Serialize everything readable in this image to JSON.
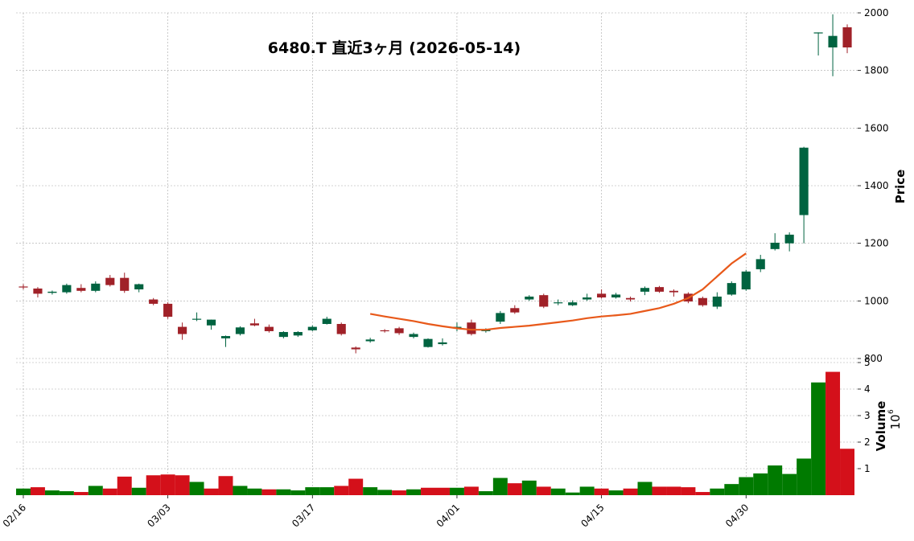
{
  "chart_data": [
    {
      "type": "candlestick",
      "title": "6480.T 直近3ヶ月 (2026-05-14)",
      "ylabel": "Price",
      "ylim": [
        800,
        2000
      ],
      "yticks": [
        "800",
        "1000",
        "1200",
        "1400",
        "1600",
        "1800",
        "2000"
      ],
      "xticks": [
        {
          "index": 0,
          "label": "02/16"
        },
        {
          "index": 10,
          "label": "03/03"
        },
        {
          "index": 20,
          "label": "03/17"
        },
        {
          "index": 30,
          "label": "04/01"
        },
        {
          "index": 40,
          "label": "04/15"
        },
        {
          "index": 50,
          "label": "04/30"
        }
      ],
      "grid": true,
      "colors": {
        "up": "#006340",
        "down": "#a02128",
        "ma": "#e8591a"
      },
      "ohlc": [
        [
          1050,
          1058,
          1040,
          1048
        ],
        [
          1043,
          1048,
          1012,
          1025
        ],
        [
          1028,
          1036,
          1022,
          1032
        ],
        [
          1030,
          1060,
          1025,
          1055
        ],
        [
          1045,
          1058,
          1030,
          1035
        ],
        [
          1035,
          1068,
          1030,
          1060
        ],
        [
          1080,
          1090,
          1050,
          1055
        ],
        [
          1080,
          1098,
          1028,
          1035
        ],
        [
          1040,
          1060,
          1030,
          1058
        ],
        [
          1005,
          1010,
          985,
          990
        ],
        [
          990,
          995,
          938,
          945
        ],
        [
          910,
          925,
          865,
          885
        ],
        [
          935,
          960,
          930,
          938
        ],
        [
          915,
          935,
          900,
          935
        ],
        [
          870,
          880,
          840,
          878
        ],
        [
          885,
          912,
          880,
          908
        ],
        [
          922,
          938,
          912,
          915
        ],
        [
          910,
          918,
          890,
          895
        ],
        [
          875,
          895,
          870,
          892
        ],
        [
          880,
          895,
          875,
          892
        ],
        [
          898,
          915,
          895,
          910
        ],
        [
          920,
          945,
          918,
          938
        ],
        [
          920,
          925,
          880,
          885
        ],
        [
          838,
          842,
          818,
          832
        ],
        [
          860,
          872,
          855,
          866
        ],
        [
          898,
          902,
          890,
          895
        ],
        [
          905,
          910,
          882,
          888
        ],
        [
          875,
          890,
          870,
          885
        ],
        [
          840,
          870,
          838,
          868
        ],
        [
          850,
          870,
          845,
          856
        ],
        [
          905,
          925,
          895,
          910
        ],
        [
          925,
          935,
          880,
          885
        ],
        [
          895,
          905,
          890,
          902
        ],
        [
          928,
          965,
          920,
          958
        ],
        [
          975,
          985,
          955,
          960
        ],
        [
          1005,
          1020,
          1000,
          1015
        ],
        [
          1020,
          1025,
          975,
          980
        ],
        [
          995,
          1005,
          985,
          995
        ],
        [
          985,
          1002,
          982,
          995
        ],
        [
          1005,
          1025,
          1000,
          1012
        ],
        [
          1025,
          1040,
          1008,
          1012
        ],
        [
          1012,
          1028,
          1008,
          1022
        ],
        [
          1010,
          1015,
          998,
          1005
        ],
        [
          1032,
          1050,
          1020,
          1045
        ],
        [
          1048,
          1052,
          1028,
          1032
        ],
        [
          1035,
          1040,
          1015,
          1030
        ],
        [
          1025,
          1030,
          992,
          998
        ],
        [
          1010,
          1015,
          980,
          985
        ],
        [
          980,
          1030,
          972,
          1015
        ],
        [
          1022,
          1068,
          1018,
          1062
        ],
        [
          1040,
          1108,
          1035,
          1102
        ],
        [
          1110,
          1160,
          1100,
          1145
        ],
        [
          1180,
          1235,
          1175,
          1202
        ],
        [
          1200,
          1238,
          1172,
          1230
        ],
        [
          1298,
          1535,
          1200,
          1532
        ],
        [
          1932,
          1932,
          1852,
          1932
        ],
        [
          1880,
          1995,
          1780,
          1920
        ],
        [
          1950,
          1960,
          1860,
          1880
        ]
      ],
      "ma": [
        {
          "start": 24,
          "values": [
            955,
            946,
            938,
            930,
            920,
            912,
            905,
            900,
            900,
            906,
            910,
            914,
            920,
            926,
            932,
            940,
            946,
            950,
            955,
            965,
            975,
            990,
            1010,
            1040,
            1085,
            1130,
            1165
          ]
        }
      ]
    },
    {
      "type": "bar",
      "ylabel": "Volume",
      "yscale_label": "10",
      "yscale_exp": "6",
      "ylim": [
        0,
        5
      ],
      "yticks": [
        "1",
        "2",
        "3",
        "4",
        "5"
      ],
      "colors": {
        "up": "#007a00",
        "down": "#d4101a"
      },
      "values": [
        0.25,
        0.3,
        0.18,
        0.15,
        0.12,
        0.35,
        0.25,
        0.7,
        0.28,
        0.75,
        0.78,
        0.75,
        0.5,
        0.25,
        0.72,
        0.35,
        0.25,
        0.22,
        0.22,
        0.18,
        0.3,
        0.3,
        0.35,
        0.62,
        0.3,
        0.2,
        0.18,
        0.22,
        0.28,
        0.28,
        0.28,
        0.32,
        0.15,
        0.65,
        0.45,
        0.55,
        0.32,
        0.25,
        0.1,
        0.32,
        0.25,
        0.18,
        0.25,
        0.5,
        0.32,
        0.32,
        0.3,
        0.12,
        0.25,
        0.42,
        0.68,
        0.82,
        1.12,
        0.8,
        1.38,
        4.25,
        4.65,
        1.75
      ],
      "direction": [
        "u",
        "d",
        "u",
        "u",
        "d",
        "u",
        "d",
        "d",
        "u",
        "d",
        "d",
        "d",
        "u",
        "d",
        "d",
        "u",
        "u",
        "d",
        "u",
        "u",
        "u",
        "u",
        "d",
        "d",
        "u",
        "u",
        "d",
        "u",
        "d",
        "d",
        "u",
        "d",
        "u",
        "u",
        "d",
        "u",
        "d",
        "u",
        "u",
        "u",
        "d",
        "u",
        "d",
        "u",
        "d",
        "d",
        "d",
        "d",
        "u",
        "u",
        "u",
        "u",
        "u",
        "u",
        "u",
        "u",
        "d",
        "d"
      ]
    }
  ]
}
